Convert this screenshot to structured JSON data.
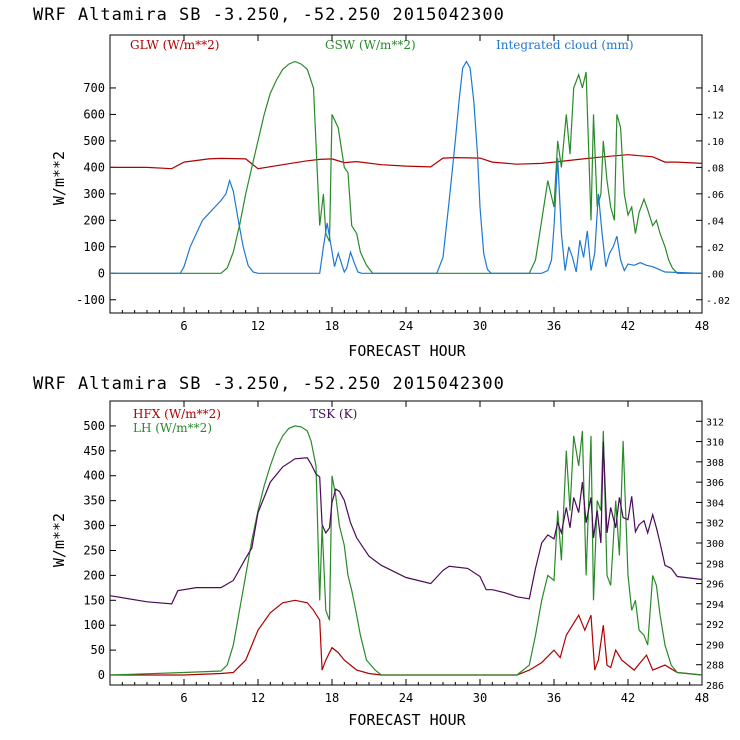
{
  "chart_data": [
    {
      "type": "line",
      "title": "WRF   Altamira  SB  -3.250, -52.250  2015042300",
      "xlabel": "FORECAST HOUR",
      "ylabel": "W/m**2",
      "xlim": [
        0,
        48
      ],
      "ylim": [
        -150,
        900
      ],
      "x_ticks": [
        6,
        12,
        18,
        24,
        30,
        36,
        42,
        48
      ],
      "y_ticks": [
        -100,
        0,
        100,
        200,
        300,
        400,
        500,
        600,
        700
      ],
      "right_axis": {
        "ylim": [
          -0.03,
          0.18
        ],
        "ticks": [
          -0.02,
          0.0,
          0.02,
          0.04,
          0.06,
          0.08,
          0.1,
          0.12,
          0.14
        ],
        "tick_labels": [
          "-.02",
          ".00",
          ".02",
          ".04",
          ".06",
          ".08",
          ".10",
          ".12",
          ".14"
        ]
      },
      "series": [
        {
          "name": "GLW (W/m**2)",
          "color": "#b00000",
          "axis": "left",
          "x": [
            0,
            3,
            5,
            6,
            8,
            9,
            11,
            12,
            14,
            16,
            17,
            18,
            19,
            20,
            22,
            24,
            26,
            27,
            28,
            30,
            31,
            33,
            35,
            36,
            38,
            40,
            42,
            44,
            45,
            46,
            48
          ],
          "values": [
            400,
            400,
            395,
            420,
            432,
            434,
            432,
            395,
            410,
            425,
            430,
            432,
            418,
            422,
            410,
            405,
            402,
            435,
            437,
            435,
            420,
            412,
            415,
            420,
            430,
            440,
            448,
            440,
            420,
            420,
            415
          ]
        },
        {
          "name": "GSW (W/m**2)",
          "color": "#2a8a2a",
          "axis": "left",
          "x": [
            0,
            9,
            9.5,
            10,
            10.5,
            11,
            11.5,
            12,
            12.5,
            13,
            13.5,
            14,
            14.5,
            15,
            15.5,
            16,
            16.5,
            17,
            17.3,
            17.5,
            17.8,
            18,
            18.5,
            19,
            19.3,
            19.6,
            20,
            20.3,
            20.8,
            21.3,
            22,
            33,
            34,
            34.5,
            35,
            35.5,
            36,
            36.3,
            36.6,
            37,
            37.3,
            37.6,
            38,
            38.3,
            38.6,
            39,
            39.2,
            39.5,
            39.8,
            40,
            40.3,
            40.6,
            40.9,
            41.1,
            41.4,
            41.7,
            42,
            42.3,
            42.6,
            42.9,
            43.3,
            43.6,
            44,
            44.3,
            44.6,
            45,
            45.3,
            45.6,
            46,
            48
          ],
          "values": [
            0,
            0,
            20,
            80,
            180,
            300,
            400,
            500,
            600,
            680,
            730,
            770,
            790,
            800,
            790,
            770,
            700,
            180,
            300,
            150,
            120,
            600,
            550,
            400,
            380,
            180,
            150,
            80,
            30,
            0,
            0,
            0,
            0,
            50,
            200,
            350,
            250,
            500,
            400,
            600,
            450,
            700,
            750,
            700,
            760,
            200,
            600,
            250,
            300,
            500,
            350,
            250,
            200,
            600,
            550,
            300,
            220,
            250,
            150,
            230,
            280,
            240,
            180,
            200,
            150,
            100,
            50,
            20,
            0,
            0
          ]
        },
        {
          "name": "Integrated cloud (mm)",
          "color": "#1e78d2",
          "axis": "right",
          "x": [
            0,
            5.7,
            6,
            6.5,
            7,
            7.5,
            8,
            8.5,
            9,
            9.4,
            9.7,
            10,
            10.4,
            10.8,
            11.2,
            11.6,
            12,
            17,
            17.3,
            17.6,
            17.9,
            18.2,
            18.5,
            19,
            19.2,
            19.5,
            19.8,
            20.1,
            20.4,
            26.5,
            27,
            27.5,
            28,
            28.3,
            28.6,
            28.9,
            29.2,
            29.5,
            29.8,
            30,
            30.3,
            30.6,
            30.9,
            35,
            35.5,
            35.8,
            36,
            36.3,
            36.6,
            36.9,
            37.2,
            37.5,
            37.8,
            38.1,
            38.4,
            38.7,
            39,
            39.3,
            39.6,
            39.9,
            40.2,
            40.5,
            40.8,
            41.1,
            41.4,
            41.7,
            42,
            42.5,
            43,
            43.5,
            44,
            44.5,
            45,
            48
          ],
          "values": [
            0,
            0,
            0.005,
            0.02,
            0.03,
            0.04,
            0.045,
            0.05,
            0.055,
            0.06,
            0.07,
            0.062,
            0.04,
            0.02,
            0.006,
            0.001,
            0,
            0,
            0.02,
            0.038,
            0.022,
            0.005,
            0.015,
            0.001,
            0.004,
            0.016,
            0.008,
            0.001,
            0,
            0,
            0.012,
            0.055,
            0.1,
            0.13,
            0.155,
            0.16,
            0.155,
            0.13,
            0.09,
            0.05,
            0.015,
            0.003,
            0,
            0,
            0.002,
            0.01,
            0.035,
            0.087,
            0.03,
            0.002,
            0.02,
            0.012,
            0.001,
            0.025,
            0.012,
            0.032,
            0.002,
            0.015,
            0.06,
            0.03,
            0.005,
            0.015,
            0.02,
            0.028,
            0.01,
            0.002,
            0.007,
            0.006,
            0.008,
            0.006,
            0.005,
            0.003,
            0.001,
            0
          ]
        }
      ]
    },
    {
      "type": "line",
      "title": "WRF   Altamira  SB  -3.250, -52.250  2015042300",
      "xlabel": "FORECAST HOUR",
      "ylabel": "W/m**2",
      "xlim": [
        0,
        48
      ],
      "ylim": [
        -20,
        550
      ],
      "x_ticks": [
        6,
        12,
        18,
        24,
        30,
        36,
        42,
        48
      ],
      "y_ticks": [
        0,
        50,
        100,
        150,
        200,
        250,
        300,
        350,
        400,
        450,
        500
      ],
      "right_axis": {
        "ylim": [
          286,
          314
        ],
        "ticks": [
          286,
          288,
          290,
          292,
          294,
          296,
          298,
          300,
          302,
          304,
          306,
          308,
          310,
          312
        ]
      },
      "series": [
        {
          "name": "HFX (W/m**2)",
          "color": "#b00000",
          "axis": "left",
          "x": [
            0,
            6,
            9,
            10,
            11,
            12,
            13,
            14,
            15,
            16,
            16.5,
            17,
            17.2,
            17.5,
            18,
            18.5,
            19,
            19.5,
            20,
            21,
            22,
            33,
            34,
            35,
            36,
            36.5,
            37,
            37.5,
            38,
            38.5,
            39,
            39.3,
            39.6,
            40,
            40.3,
            40.6,
            41,
            41.5,
            42,
            42.5,
            43,
            43.5,
            44,
            45,
            46,
            48
          ],
          "values": [
            0,
            0,
            3,
            5,
            30,
            90,
            125,
            145,
            150,
            145,
            130,
            110,
            10,
            30,
            55,
            45,
            30,
            20,
            10,
            3,
            0,
            0,
            10,
            25,
            50,
            35,
            80,
            100,
            120,
            90,
            120,
            10,
            30,
            100,
            20,
            15,
            50,
            30,
            20,
            10,
            25,
            40,
            10,
            20,
            5,
            0
          ]
        },
        {
          "name": "LH (W/m**2)",
          "color": "#2a8a2a",
          "axis": "left",
          "x": [
            0,
            6,
            9,
            9.5,
            10,
            10.5,
            11,
            11.5,
            12,
            12.5,
            13,
            13.5,
            14,
            14.5,
            15,
            15.5,
            16,
            16.3,
            16.7,
            17,
            17.2,
            17.5,
            17.8,
            18,
            18.3,
            18.6,
            19,
            19.3,
            19.6,
            20,
            20.3,
            20.8,
            21.5,
            22,
            33,
            34,
            34.5,
            35,
            35.5,
            36,
            36.3,
            36.6,
            37,
            37.3,
            37.6,
            38,
            38.3,
            38.6,
            39,
            39.2,
            39.5,
            39.8,
            40,
            40.3,
            40.6,
            41,
            41.3,
            41.6,
            42,
            42.3,
            42.6,
            42.9,
            43.3,
            43.6,
            44,
            44.3,
            44.6,
            45,
            45.5,
            46,
            48
          ],
          "values": [
            0,
            5,
            8,
            20,
            60,
            130,
            200,
            270,
            330,
            380,
            420,
            455,
            480,
            495,
            500,
            498,
            490,
            470,
            420,
            150,
            300,
            130,
            110,
            400,
            360,
            300,
            260,
            200,
            170,
            120,
            80,
            30,
            10,
            0,
            0,
            20,
            80,
            150,
            200,
            190,
            330,
            230,
            450,
            330,
            480,
            420,
            490,
            200,
            480,
            150,
            350,
            330,
            490,
            200,
            180,
            350,
            240,
            470,
            200,
            130,
            150,
            90,
            80,
            60,
            200,
            180,
            120,
            60,
            20,
            5,
            0
          ]
        },
        {
          "name": "TSK (K)",
          "color": "#4b0a5a",
          "axis": "right",
          "x": [
            0,
            3,
            5,
            5.5,
            7,
            9,
            10,
            11,
            11.5,
            12,
            13,
            14,
            15,
            16,
            16.3,
            16.7,
            17,
            17.2,
            17.5,
            17.8,
            18,
            18.3,
            18.6,
            19,
            19.5,
            20,
            21,
            22,
            24,
            26,
            27,
            27.5,
            29,
            30,
            30.5,
            31,
            32,
            33,
            34,
            34.5,
            35,
            35.5,
            36,
            36.3,
            36.6,
            37,
            37.3,
            37.6,
            38,
            38.3,
            38.6,
            39,
            39.2,
            39.5,
            39.8,
            40,
            40.3,
            40.6,
            41,
            41.3,
            41.6,
            42,
            42.3,
            42.6,
            42.9,
            43.3,
            43.6,
            44,
            44.3,
            44.6,
            45,
            45.5,
            46,
            48
          ],
          "values": [
            294.8,
            294.2,
            294,
            295.3,
            295.6,
            295.6,
            296.3,
            298.5,
            299.5,
            303,
            306,
            307.5,
            308.3,
            308.4,
            307.8,
            306.8,
            306.5,
            301.8,
            301,
            301.5,
            304,
            305.3,
            305.1,
            304.2,
            302,
            300.5,
            298.7,
            297.8,
            296.6,
            296,
            297.3,
            297.7,
            297.5,
            296.7,
            295.4,
            295.4,
            295.1,
            294.7,
            294.5,
            297.5,
            300,
            300.8,
            300.4,
            302,
            301,
            303.5,
            301.5,
            304.5,
            303,
            306,
            302,
            304.5,
            300.5,
            303.2,
            300,
            310,
            301,
            303.5,
            301.5,
            304.5,
            302.5,
            302.3,
            304.6,
            301.1,
            301.8,
            302.2,
            301,
            302.8,
            301.5,
            300,
            297.8,
            297.5,
            296.7,
            296.4
          ]
        }
      ]
    }
  ]
}
